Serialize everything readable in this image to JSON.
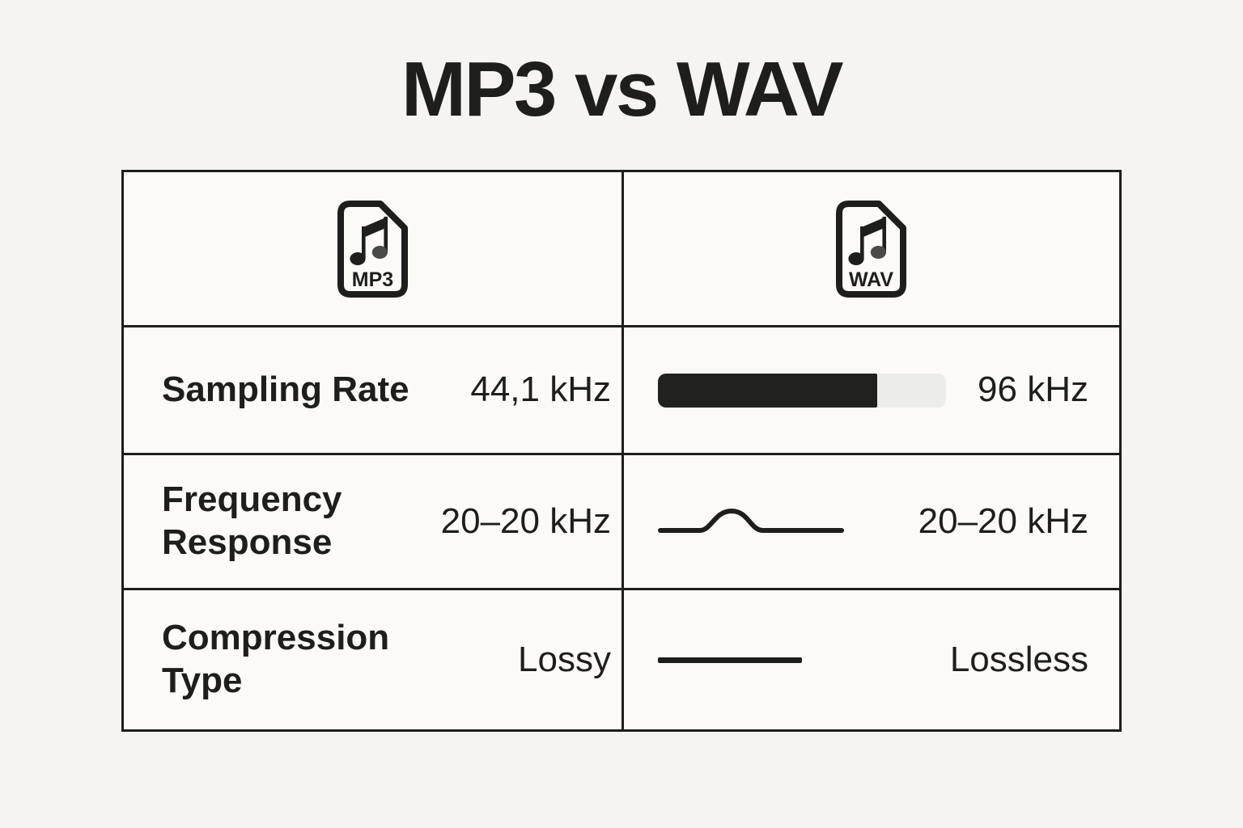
{
  "title": "MP3 vs WAV",
  "table": {
    "header": {
      "mp3_label": "MP3",
      "wav_label": "WAV"
    },
    "rows": [
      {
        "label": "Sampling Rate",
        "mp3_value": "44,1 kHz",
        "wav_value": "96 kHz",
        "wav_visual": {
          "type": "progress-bar",
          "percent": 76
        }
      },
      {
        "label": "Frequency Response",
        "mp3_value": "20–20 kHz",
        "wav_value": "20–20 kHz",
        "wav_visual": {
          "type": "wave-curve"
        }
      },
      {
        "label": "Compression Type",
        "mp3_value": "Lossy",
        "wav_value": "Lossless",
        "wav_visual": {
          "type": "flat-line"
        }
      }
    ]
  },
  "icons": {
    "mp3_column": "mp3-file-icon",
    "wav_column": "wav-file-icon",
    "frequency_response": "wave-curve-icon",
    "compression_type": "flat-line-icon"
  },
  "colors": {
    "background": "#f5f4f0",
    "cell_background": "#fbfaf7",
    "text": "#1e1e1c",
    "border": "#1e1e1c",
    "bar_fill": "#21211f",
    "bar_track": "#ececea"
  }
}
